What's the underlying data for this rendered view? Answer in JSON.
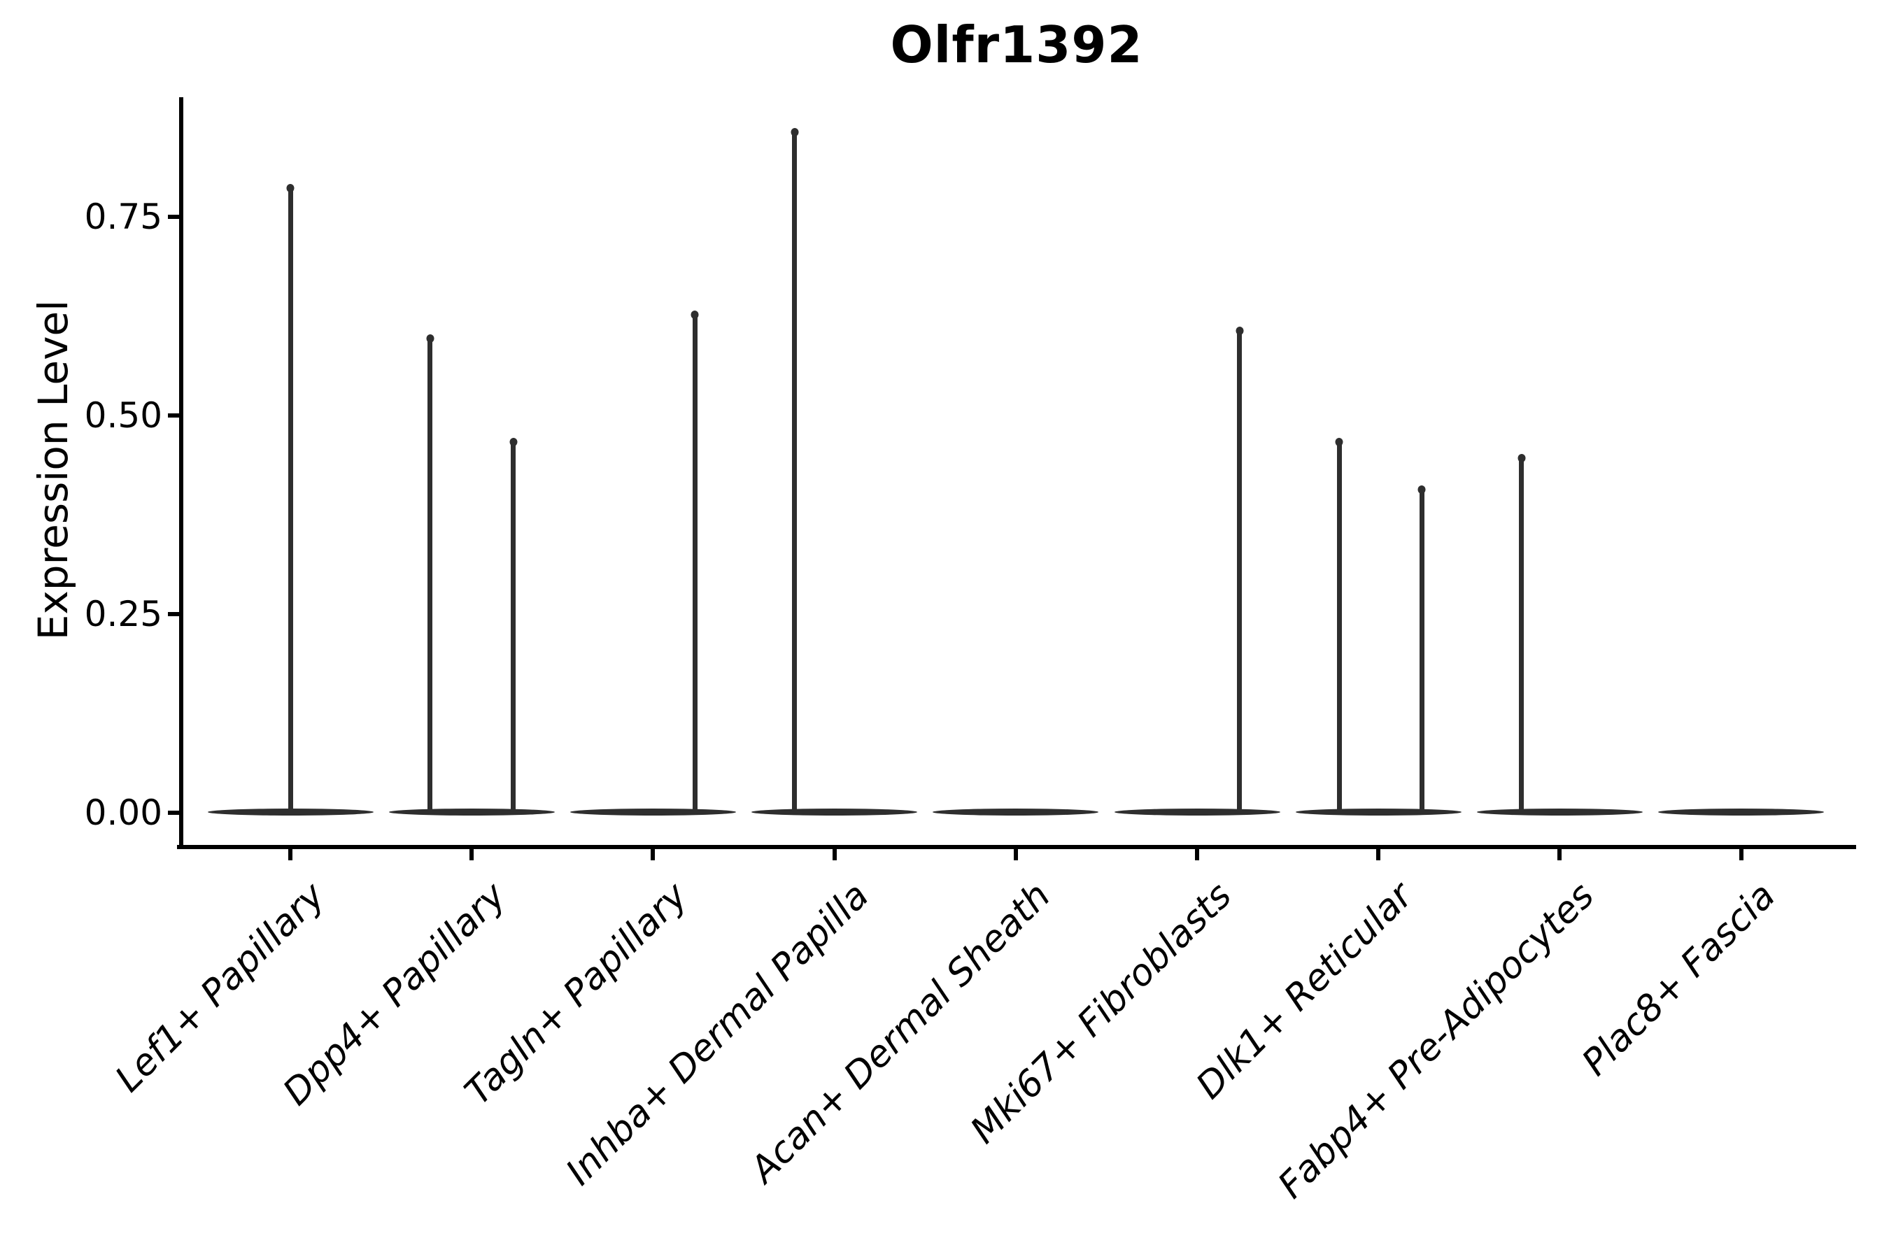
{
  "page": {
    "background": "#ffffff"
  },
  "chart_data": {
    "type": "violin",
    "title": "Olfr1392",
    "ylabel": "Expression Level",
    "xlabel": "",
    "ylim": [
      -0.042,
      0.9
    ],
    "grid": false,
    "legend": false,
    "colors": {
      "violin": "#2e2e2e",
      "axis": "#000000",
      "text": "#000000"
    },
    "yticks": [
      {
        "label": "0.00",
        "value": 0.0
      },
      {
        "label": "0.25",
        "value": 0.25
      },
      {
        "label": "0.50",
        "value": 0.5
      },
      {
        "label": "0.75",
        "value": 0.75
      }
    ],
    "categories": [
      "Lef1+ Papillary",
      "Dpp4+ Papillary",
      "Tagln+ Papillary",
      "Inhba+ Dermal Papilla",
      "Acan+ Dermal Sheath",
      "Mki67+ Fibroblasts",
      "Dlk1+ Reticular",
      "Fabp4+ Pre-Adipocytes",
      "Plac8+ Fascia"
    ],
    "violins": [
      {
        "baseline_value": 0.0,
        "spikes": [
          {
            "offset_frac": 0.0,
            "value": 0.79
          }
        ]
      },
      {
        "baseline_value": 0.0,
        "spikes": [
          {
            "offset_frac": -0.23,
            "value": 0.6
          },
          {
            "offset_frac": 0.23,
            "value": 0.47
          }
        ]
      },
      {
        "baseline_value": 0.0,
        "spikes": [
          {
            "offset_frac": 0.23,
            "value": 0.63
          }
        ]
      },
      {
        "baseline_value": 0.0,
        "spikes": [
          {
            "offset_frac": -0.22,
            "value": 0.86
          }
        ]
      },
      {
        "baseline_value": 0.0,
        "spikes": []
      },
      {
        "baseline_value": 0.0,
        "spikes": [
          {
            "offset_frac": 0.235,
            "value": 0.61
          }
        ]
      },
      {
        "baseline_value": 0.0,
        "spikes": [
          {
            "offset_frac": -0.215,
            "value": 0.47
          },
          {
            "offset_frac": 0.24,
            "value": 0.41
          }
        ]
      },
      {
        "baseline_value": 0.0,
        "spikes": [
          {
            "offset_frac": -0.21,
            "value": 0.45
          }
        ]
      },
      {
        "baseline_value": 0.0,
        "spikes": []
      }
    ]
  }
}
